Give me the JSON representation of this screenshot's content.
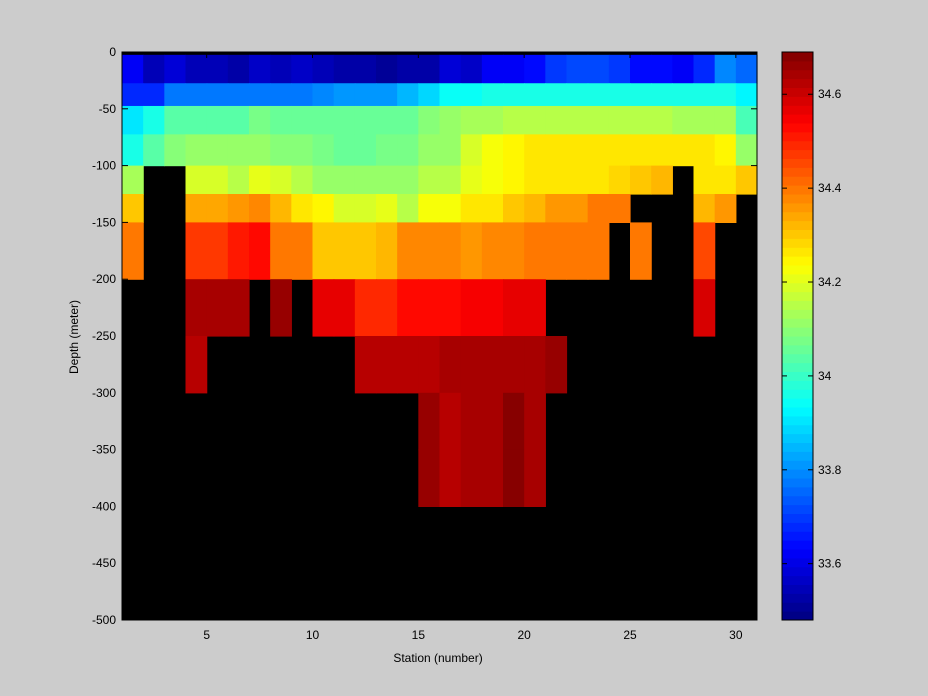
{
  "chart_data": {
    "type": "heatmap",
    "xlabel": "Station (number)",
    "ylabel": "Depth (meter)",
    "xlim": [
      1,
      31
    ],
    "ylim": [
      -500,
      0
    ],
    "xticks": [
      5,
      10,
      15,
      20,
      25,
      30
    ],
    "yticks": [
      0,
      -50,
      -100,
      -150,
      -200,
      -250,
      -300,
      -350,
      -400,
      -450,
      -500
    ],
    "colorbar": {
      "range": [
        33.48,
        34.69
      ],
      "ticks": [
        33.6,
        33.8,
        34,
        34.2,
        34.4,
        34.6
      ],
      "colormap": "jet",
      "levels": 64
    },
    "background_color": "#000000",
    "stations": [
      1,
      2,
      3,
      4,
      5,
      6,
      7,
      8,
      9,
      10,
      11,
      12,
      13,
      14,
      15,
      16,
      17,
      18,
      19,
      20,
      21,
      22,
      23,
      24,
      25,
      26,
      27,
      28,
      29,
      30
    ],
    "depths": [
      0,
      -12.5,
      -37.5,
      -62.5,
      -87.5,
      -112.5,
      -137.5,
      -175,
      -225,
      -275,
      -325,
      -375,
      -450
    ],
    "depth_bounds": [
      0,
      -2.5,
      -27.5,
      -47.5,
      -72.5,
      -100,
      -125,
      -150,
      -200,
      -250,
      -300,
      -350,
      -400,
      -500
    ],
    "values": [
      [
        null,
        null,
        null,
        null,
        null,
        null,
        null,
        null,
        null,
        null,
        null,
        null,
        null,
        null,
        null,
        null,
        null,
        null,
        null,
        null,
        null,
        null,
        null,
        null,
        null,
        null,
        null,
        null,
        null,
        null
      ],
      [
        33.62,
        33.54,
        33.58,
        33.55,
        33.54,
        33.52,
        33.56,
        33.55,
        33.57,
        33.54,
        33.52,
        33.52,
        33.51,
        33.53,
        33.53,
        33.58,
        33.56,
        33.62,
        33.62,
        33.65,
        33.7,
        33.72,
        33.72,
        33.7,
        33.65,
        33.65,
        33.62,
        33.68,
        33.8,
        33.76
      ],
      [
        33.68,
        33.68,
        33.78,
        33.78,
        33.78,
        33.78,
        33.78,
        33.78,
        33.78,
        33.8,
        33.82,
        33.82,
        33.82,
        33.85,
        33.88,
        33.94,
        33.94,
        33.96,
        33.96,
        33.96,
        33.96,
        33.96,
        33.96,
        33.96,
        33.96,
        33.96,
        33.96,
        33.96,
        33.96,
        33.92
      ],
      [
        33.9,
        33.96,
        34.04,
        34.04,
        34.04,
        34.04,
        34.07,
        34.05,
        34.06,
        34.05,
        34.05,
        34.05,
        34.05,
        34.05,
        34.09,
        34.11,
        34.13,
        34.14,
        34.15,
        34.16,
        34.16,
        34.16,
        34.16,
        34.16,
        34.16,
        34.16,
        34.14,
        34.14,
        34.14,
        34.02
      ],
      [
        33.96,
        34.04,
        34.09,
        34.11,
        34.11,
        34.11,
        34.12,
        34.1,
        34.09,
        34.07,
        34.05,
        34.05,
        34.07,
        34.07,
        34.11,
        34.11,
        34.18,
        34.22,
        34.24,
        34.26,
        34.27,
        34.27,
        34.27,
        34.27,
        34.27,
        34.27,
        34.27,
        34.27,
        34.24,
        34.12
      ],
      [
        34.14,
        null,
        null,
        34.18,
        34.18,
        34.16,
        34.21,
        34.18,
        34.16,
        34.12,
        34.12,
        34.12,
        34.12,
        34.11,
        34.16,
        34.16,
        34.2,
        34.22,
        34.24,
        34.26,
        34.27,
        34.27,
        34.27,
        34.29,
        34.3,
        34.32,
        null,
        34.27,
        34.27,
        34.3
      ],
      [
        34.3,
        null,
        null,
        34.34,
        34.34,
        34.36,
        34.38,
        34.33,
        34.26,
        34.24,
        34.18,
        34.18,
        34.2,
        34.16,
        34.23,
        34.23,
        34.26,
        34.27,
        34.3,
        34.33,
        34.35,
        34.35,
        34.4,
        34.4,
        null,
        null,
        null,
        34.33,
        34.36,
        null
      ],
      [
        34.4,
        null,
        null,
        34.48,
        34.48,
        34.51,
        34.52,
        34.4,
        34.4,
        34.3,
        34.3,
        34.3,
        34.32,
        34.37,
        34.38,
        34.38,
        34.36,
        34.37,
        34.38,
        34.39,
        34.4,
        34.4,
        34.4,
        null,
        34.4,
        null,
        null,
        34.45,
        null,
        null
      ],
      [
        null,
        null,
        null,
        34.64,
        34.64,
        34.64,
        null,
        34.67,
        null,
        34.57,
        34.57,
        34.5,
        34.5,
        34.52,
        34.52,
        34.53,
        34.55,
        34.55,
        34.56,
        34.56,
        null,
        null,
        null,
        null,
        null,
        null,
        null,
        34.58,
        null,
        null
      ],
      [
        null,
        null,
        null,
        34.62,
        null,
        null,
        null,
        null,
        null,
        null,
        null,
        34.62,
        34.62,
        34.62,
        34.62,
        34.64,
        34.64,
        34.64,
        34.64,
        34.64,
        34.67,
        null,
        null,
        null,
        null,
        null,
        null,
        null,
        null,
        null
      ],
      [
        null,
        null,
        null,
        null,
        null,
        null,
        null,
        null,
        null,
        null,
        null,
        null,
        null,
        null,
        34.66,
        34.63,
        34.65,
        34.65,
        34.68,
        34.65,
        null,
        null,
        null,
        null,
        null,
        null,
        null,
        null,
        null,
        null
      ],
      [
        null,
        null,
        null,
        null,
        null,
        null,
        null,
        null,
        null,
        null,
        null,
        null,
        null,
        null,
        34.66,
        34.63,
        34.65,
        34.65,
        34.68,
        34.65,
        null,
        null,
        null,
        null,
        null,
        null,
        null,
        null,
        null,
        null
      ],
      [
        null,
        null,
        null,
        null,
        null,
        null,
        null,
        null,
        null,
        null,
        null,
        null,
        null,
        null,
        null,
        null,
        null,
        null,
        null,
        null,
        null,
        null,
        null,
        null,
        null,
        null,
        null,
        null,
        null,
        null
      ]
    ]
  }
}
